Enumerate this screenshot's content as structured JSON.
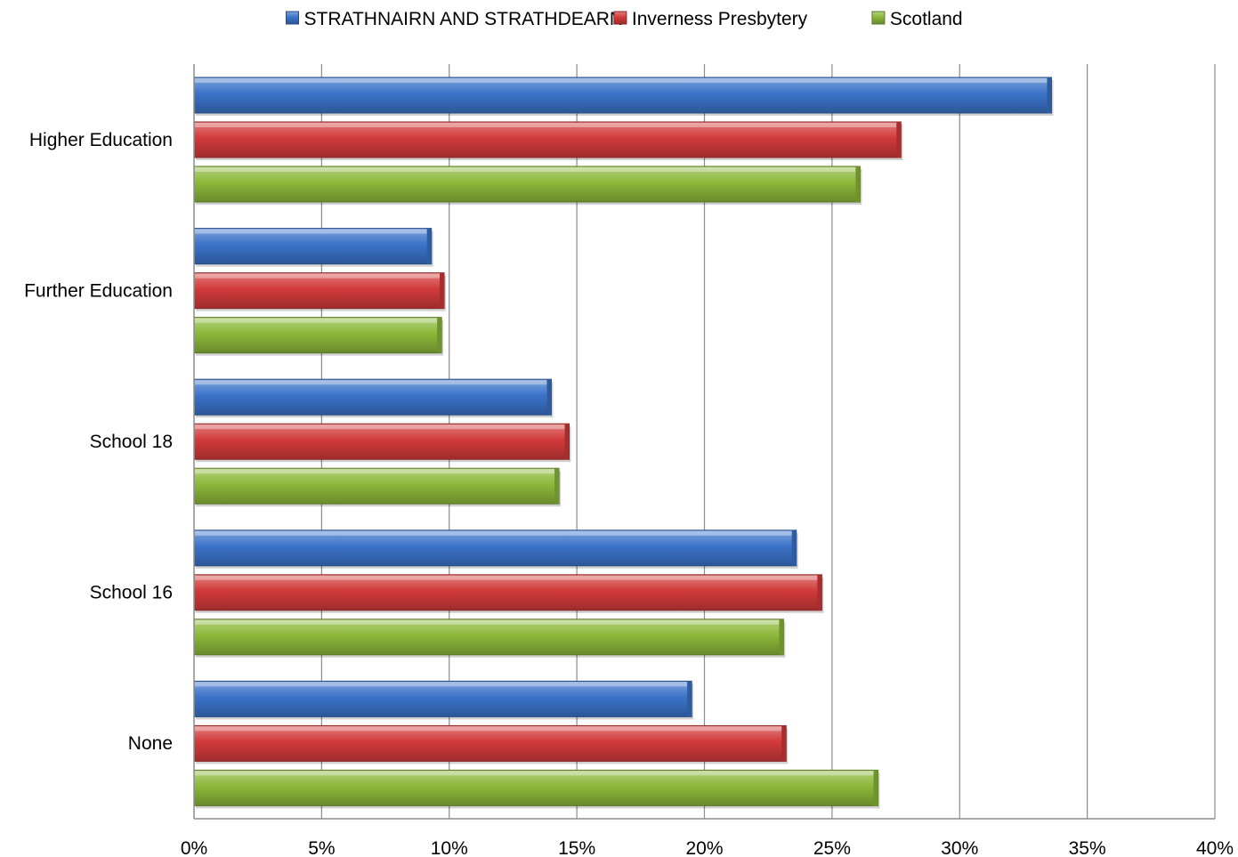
{
  "chart_data": {
    "type": "bar",
    "orientation": "horizontal",
    "categories": [
      "Higher Education",
      "Further Education",
      "School 18",
      "School 16",
      "None"
    ],
    "series": [
      {
        "name": "STRATHNAIRN AND STRATHDEARN",
        "color": "#3b73c9",
        "values": [
          33.6,
          9.3,
          14.0,
          23.6,
          19.5
        ]
      },
      {
        "name": "Inverness Presbytery",
        "color": "#d23a3a",
        "values": [
          27.7,
          9.8,
          14.7,
          24.6,
          23.2
        ]
      },
      {
        "name": "Scotland",
        "color": "#8cb83a",
        "values": [
          26.1,
          9.7,
          14.3,
          23.1,
          26.8
        ]
      }
    ],
    "x_ticks": [
      "0%",
      "5%",
      "10%",
      "15%",
      "20%",
      "25%",
      "30%",
      "35%",
      "40%"
    ],
    "xlim": [
      0,
      40
    ],
    "grid": true,
    "legend_position": "top"
  }
}
